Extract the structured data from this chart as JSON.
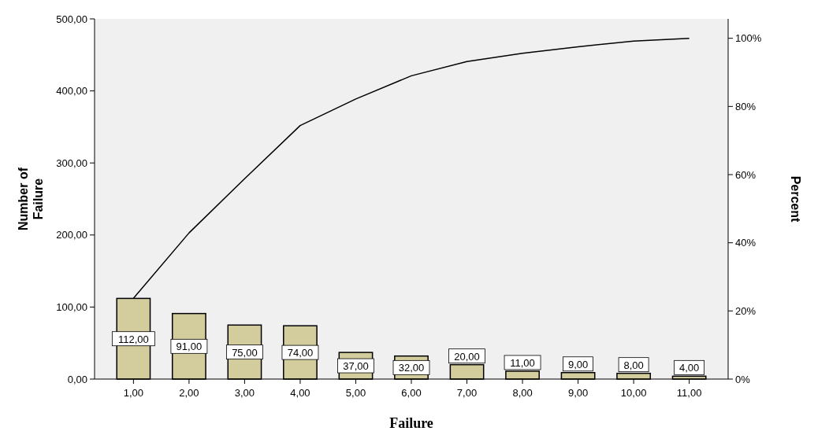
{
  "chart_data": {
    "type": "bar",
    "xlabel": "Failure",
    "ylabel": "Number of Failure",
    "y2label": "Percent",
    "categories": [
      "1,00",
      "2,00",
      "3,00",
      "4,00",
      "5,00",
      "6,00",
      "7,00",
      "8,00",
      "9,00",
      "10,00",
      "11,00"
    ],
    "series": [
      {
        "color": "#d3cc9c",
        "values": [
          112,
          91,
          75,
          74,
          37,
          32,
          20,
          11,
          9,
          8,
          4
        ],
        "value_labels": [
          "112,00",
          "91,00",
          "75,00",
          "74,00",
          "37,00",
          "32,00",
          "20,00",
          "11,00",
          "9,00",
          "8,00",
          "4,00"
        ]
      },
      {
        "type": "line",
        "axis": "y2",
        "color": "#000000",
        "values": [
          23.7,
          42.9,
          58.8,
          74.4,
          82.2,
          89.0,
          93.2,
          95.6,
          97.5,
          99.2,
          100
        ]
      }
    ],
    "ylim": [
      0,
      500
    ],
    "yticks": [
      {
        "value": 0,
        "label": "0,00"
      },
      {
        "value": 100,
        "label": "100,00"
      },
      {
        "value": 200,
        "label": "200,00"
      },
      {
        "value": 300,
        "label": "300,00"
      },
      {
        "value": 400,
        "label": "400,00"
      },
      {
        "value": 500,
        "label": "500,00"
      }
    ],
    "y2lim": [
      0,
      105.7
    ],
    "y2ticks": [
      {
        "value": 0,
        "label": "0%"
      },
      {
        "value": 20,
        "label": "20%"
      },
      {
        "value": 40,
        "label": "40%"
      },
      {
        "value": 60,
        "label": "60%"
      },
      {
        "value": 80,
        "label": "80%"
      },
      {
        "value": 100,
        "label": "100%"
      }
    ],
    "grid": false,
    "marker": "none",
    "line_style": "solid"
  }
}
